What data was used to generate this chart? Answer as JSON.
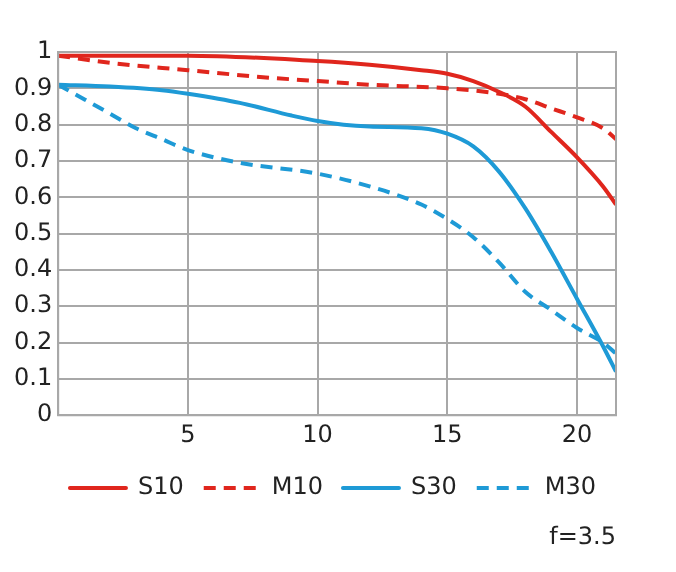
{
  "chart_data": {
    "type": "line",
    "xlim": [
      0,
      21.5
    ],
    "xticks": [
      5,
      10,
      15,
      20
    ],
    "ylim": [
      0,
      1
    ],
    "yticks": [
      0,
      0.1,
      0.2,
      0.3,
      0.4,
      0.5,
      0.6,
      0.7,
      0.8,
      0.9,
      1
    ],
    "grid": true,
    "legend": "bottom",
    "marker": "none",
    "annotations": [
      "f=3.5"
    ],
    "series": [
      {
        "name": "S10",
        "color": "#e0261d",
        "line_style": "solid",
        "x": [
          0,
          5,
          10,
          12,
          14,
          15,
          16,
          17,
          18,
          19,
          20,
          21,
          21.5
        ],
        "values": [
          0.99,
          0.99,
          0.975,
          0.965,
          0.95,
          0.94,
          0.92,
          0.89,
          0.85,
          0.78,
          0.71,
          0.63,
          0.58
        ]
      },
      {
        "name": "M10",
        "color": "#e0261d",
        "line_style": "dashed",
        "x": [
          0,
          2,
          5,
          8,
          10,
          12,
          15,
          17,
          18,
          19,
          20,
          21,
          21.5
        ],
        "values": [
          0.99,
          0.97,
          0.95,
          0.93,
          0.92,
          0.91,
          0.9,
          0.885,
          0.87,
          0.845,
          0.82,
          0.79,
          0.76
        ]
      },
      {
        "name": "S30",
        "color": "#1e9ad6",
        "line_style": "solid",
        "x": [
          0,
          2,
          4,
          5,
          7,
          9,
          10,
          11,
          12,
          14,
          15,
          16,
          17,
          18,
          19,
          20,
          21,
          21.5
        ],
        "values": [
          0.91,
          0.905,
          0.895,
          0.885,
          0.86,
          0.825,
          0.81,
          0.8,
          0.795,
          0.79,
          0.775,
          0.74,
          0.67,
          0.57,
          0.45,
          0.32,
          0.19,
          0.12
        ]
      },
      {
        "name": "M30",
        "color": "#1e9ad6",
        "line_style": "dashed",
        "x": [
          0,
          1,
          2,
          3,
          4,
          5,
          7,
          10,
          12,
          14,
          15,
          16,
          17,
          18,
          19,
          20,
          21,
          21.5
        ],
        "values": [
          0.91,
          0.87,
          0.83,
          0.79,
          0.76,
          0.73,
          0.695,
          0.665,
          0.63,
          0.58,
          0.54,
          0.49,
          0.42,
          0.34,
          0.29,
          0.24,
          0.2,
          0.17
        ]
      }
    ]
  }
}
